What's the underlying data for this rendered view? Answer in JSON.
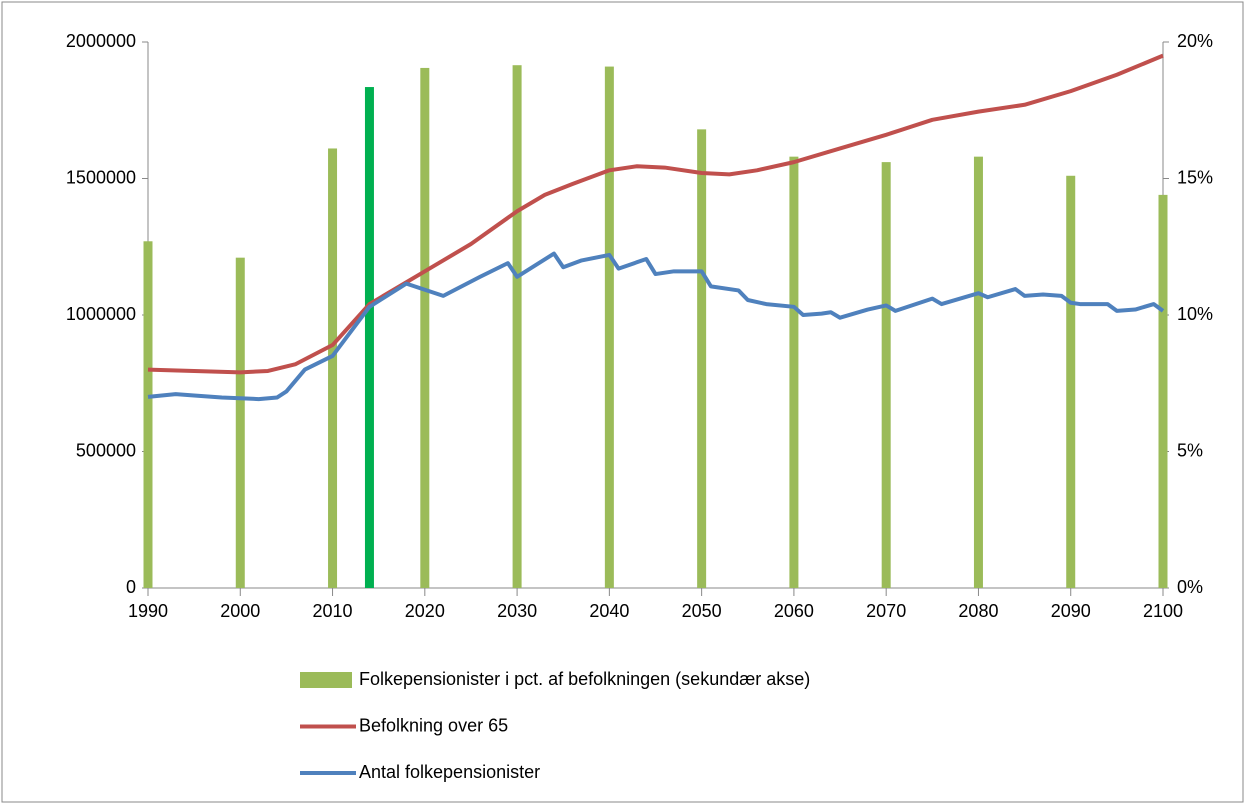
{
  "chart_data": {
    "type": "combo",
    "xlim": [
      1990,
      2100
    ],
    "xticks": [
      1990,
      2000,
      2010,
      2020,
      2030,
      2040,
      2050,
      2060,
      2070,
      2080,
      2090,
      2100
    ],
    "ylim": [
      0,
      2000000
    ],
    "yticks": [
      0,
      500000,
      1000000,
      1500000,
      2000000
    ],
    "y2lim": [
      0,
      20
    ],
    "y2ticks": [
      {
        "value": 0,
        "label": "0%"
      },
      {
        "value": 5,
        "label": "5%"
      },
      {
        "value": 10,
        "label": "10%"
      },
      {
        "value": 15,
        "label": "15%"
      },
      {
        "value": 20,
        "label": "20%"
      }
    ],
    "series": [
      {
        "name": "Folkepensionister i pct. af befolkningen (sekundær akse)",
        "type": "bar",
        "axis": "y2",
        "color": "#9bbb59",
        "x": [
          1990,
          2000,
          2010,
          2014,
          2020,
          2030,
          2040,
          2050,
          2060,
          2070,
          2080,
          2090,
          2100
        ],
        "values": [
          12.7,
          12.1,
          16.1,
          18.35,
          19.05,
          19.15,
          19.1,
          16.8,
          15.8,
          15.6,
          15.8,
          15.1,
          14.4
        ],
        "colors": [
          "#9bbb59",
          "#9bbb59",
          "#9bbb59",
          "#00b050",
          "#9bbb59",
          "#9bbb59",
          "#9bbb59",
          "#9bbb59",
          "#9bbb59",
          "#9bbb59",
          "#9bbb59",
          "#9bbb59",
          "#9bbb59"
        ]
      },
      {
        "name": "Befolkning over 65",
        "type": "line",
        "color": "#c0504d",
        "x": [
          1990,
          1995,
          2000,
          2003,
          2006,
          2010,
          2014,
          2018,
          2020,
          2025,
          2030,
          2033,
          2036,
          2040,
          2043,
          2046,
          2050,
          2053,
          2056,
          2060,
          2065,
          2070,
          2075,
          2080,
          2085,
          2090,
          2095,
          2100
        ],
        "values": [
          800000,
          795000,
          790000,
          795000,
          820000,
          890000,
          1040000,
          1120000,
          1160000,
          1260000,
          1380000,
          1440000,
          1480000,
          1530000,
          1545000,
          1540000,
          1520000,
          1515000,
          1530000,
          1560000,
          1610000,
          1660000,
          1715000,
          1745000,
          1770000,
          1820000,
          1880000,
          1950000
        ]
      },
      {
        "name": "Antal folkepensionister",
        "type": "line",
        "color": "#4f81bd",
        "x": [
          1990,
          1993,
          1995,
          1998,
          2002,
          2004,
          2005,
          2007,
          2010,
          2014,
          2018,
          2022,
          2026,
          2029,
          2030,
          2034,
          2035,
          2037,
          2040,
          2041,
          2044,
          2045,
          2047,
          2050,
          2051,
          2054,
          2055,
          2057,
          2060,
          2061,
          2063,
          2064,
          2065,
          2068,
          2070,
          2071,
          2075,
          2076,
          2080,
          2081,
          2084,
          2085,
          2087,
          2089,
          2090,
          2091,
          2094,
          2095,
          2097,
          2099,
          2100
        ],
        "values": [
          700000,
          710000,
          705000,
          698000,
          692000,
          698000,
          720000,
          800000,
          850000,
          1030000,
          1115000,
          1070000,
          1140000,
          1190000,
          1140000,
          1225000,
          1175000,
          1200000,
          1220000,
          1170000,
          1205000,
          1150000,
          1160000,
          1160000,
          1105000,
          1090000,
          1055000,
          1040000,
          1030000,
          1000000,
          1005000,
          1010000,
          990000,
          1020000,
          1035000,
          1015000,
          1060000,
          1040000,
          1080000,
          1065000,
          1095000,
          1070000,
          1075000,
          1070000,
          1045000,
          1040000,
          1040000,
          1015000,
          1020000,
          1040000,
          1015000
        ]
      }
    ]
  }
}
